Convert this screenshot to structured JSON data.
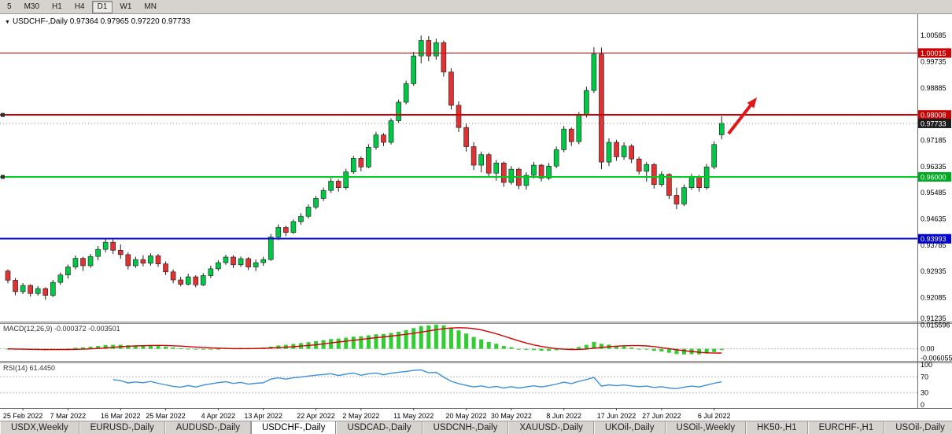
{
  "colors": {
    "bull": "#00C846",
    "bear": "#E03232",
    "wick": "#1a1a1a",
    "macd_hist": "#32CD32",
    "macd_signal": "#D40000",
    "rsi": "#3E8FDE",
    "axis": "#6e6e6e"
  },
  "toolbar": {
    "buttons": [
      "5",
      "M30",
      "H1",
      "H4",
      "D1",
      "W1",
      "MN"
    ],
    "active": "D1"
  },
  "chart_title": {
    "symbol": "USDCHF-,Daily",
    "ohlc": "0.97364 0.97965 0.97220 0.97733"
  },
  "indicators": {
    "macd": {
      "label": "MACD(12,26,9)",
      "values": "-0.000372 -0.003501",
      "scale": [
        {
          "text": "0.015596",
          "v": 0.015596
        },
        {
          "text": "0.00",
          "v": 0
        },
        {
          "text": "-0.006055",
          "v": -0.006055
        }
      ]
    },
    "rsi": {
      "label": "RSI(14)",
      "value": "61.4450",
      "scale": [
        {
          "text": "100",
          "v": 100
        },
        {
          "text": "70",
          "v": 70
        },
        {
          "text": "30",
          "v": 30
        },
        {
          "text": "0",
          "v": 0
        }
      ]
    }
  },
  "price_axis": {
    "labels": [
      {
        "text": "1.00585",
        "price": 1.00585
      },
      {
        "text": "0.99735",
        "price": 0.99735
      },
      {
        "text": "0.98885",
        "price": 0.98885
      },
      {
        "text": "0.97185",
        "price": 0.97185
      },
      {
        "text": "0.96335",
        "price": 0.96335
      },
      {
        "text": "0.95485",
        "price": 0.95485
      },
      {
        "text": "0.94635",
        "price": 0.94635
      },
      {
        "text": "0.93785",
        "price": 0.93785
      },
      {
        "text": "0.92935",
        "price": 0.92935
      },
      {
        "text": "0.92085",
        "price": 0.92085
      },
      {
        "text": "0.91235",
        "price": 0.91235
      }
    ],
    "badges": [
      {
        "text": "1.00015",
        "price": 1.00015,
        "bg": "#CC0000",
        "fg": "#ffffff"
      },
      {
        "text": "0.98008",
        "price": 0.98008,
        "bg": "#CC0000",
        "fg": "#ffffff"
      },
      {
        "text": "0.97733",
        "price": 0.97733,
        "bg": "#1c1c1c",
        "fg": "#ffffff"
      },
      {
        "text": "0.96000",
        "price": 0.96,
        "bg": "#00AA22",
        "fg": "#ffffff"
      },
      {
        "text": "0.93993",
        "price": 0.93993,
        "bg": "#0000CC",
        "fg": "#ffffff"
      }
    ]
  },
  "hlines": [
    {
      "price": 1.00015,
      "color": "#CC0000",
      "width": 1
    },
    {
      "price": 0.98008,
      "color": "#CC0000",
      "width": 2,
      "handle": true
    },
    {
      "price": 0.96,
      "color": "#00CC22",
      "width": 2,
      "handle": true
    },
    {
      "price": 0.93993,
      "color": "#0000CC",
      "width": 2
    },
    {
      "price": 0.97733,
      "color": "#8a8a8a",
      "width": 1,
      "dash": "1 3"
    }
  ],
  "arrow": {
    "color": "#E01818"
  },
  "tabs": {
    "items": [
      "USDX,Weekly",
      "EURUSD-,Daily",
      "AUDUSD-,Daily",
      "USDCHF-,Daily",
      "USDCAD-,Daily",
      "USDCNH-,Daily",
      "XAUUSD-,Daily",
      "UKOil-,Daily",
      "USOil-,Weekly",
      "HK50-,H1",
      "EURCHF-,H1",
      "USOil-,Daily"
    ],
    "active": "USDCHF-,Daily"
  },
  "chart_data": {
    "type": "candlestick",
    "symbol": "USDCHF",
    "timeframe": "Daily",
    "current_bar": {
      "open": 0.97364,
      "high": 0.97965,
      "low": 0.9722,
      "close": 0.97733
    },
    "time_ticks": [
      {
        "idx": 2,
        "label": "25 Feb 2022"
      },
      {
        "idx": 8,
        "label": "7 Mar 2022"
      },
      {
        "idx": 15,
        "label": "16 Mar 2022"
      },
      {
        "idx": 21,
        "label": "25 Mar 2022"
      },
      {
        "idx": 28,
        "label": "4 Apr 2022"
      },
      {
        "idx": 34,
        "label": "13 Apr 2022"
      },
      {
        "idx": 41,
        "label": "22 Apr 2022"
      },
      {
        "idx": 47,
        "label": "2 May 2022"
      },
      {
        "idx": 54,
        "label": "11 May 2022"
      },
      {
        "idx": 61,
        "label": "20 May 2022"
      },
      {
        "idx": 67,
        "label": "30 May 2022"
      },
      {
        "idx": 74,
        "label": "8 Jun 2022"
      },
      {
        "idx": 81,
        "label": "17 Jun 2022"
      },
      {
        "idx": 87,
        "label": "27 Jun 2022"
      },
      {
        "idx": 94,
        "label": "6 Jul 2022"
      }
    ],
    "candles": [
      [
        0.9295,
        0.93,
        0.9255,
        0.9265
      ],
      [
        0.9265,
        0.9272,
        0.9216,
        0.9228
      ],
      [
        0.9228,
        0.9256,
        0.922,
        0.9248
      ],
      [
        0.9248,
        0.9252,
        0.9212,
        0.9222
      ],
      [
        0.9222,
        0.9246,
        0.9215,
        0.9238
      ],
      [
        0.9238,
        0.9242,
        0.9202,
        0.9216
      ],
      [
        0.9216,
        0.9266,
        0.921,
        0.9258
      ],
      [
        0.9258,
        0.929,
        0.925,
        0.9282
      ],
      [
        0.9282,
        0.9316,
        0.927,
        0.9308
      ],
      [
        0.9308,
        0.9345,
        0.93,
        0.9336
      ],
      [
        0.9336,
        0.9341,
        0.9295,
        0.9312
      ],
      [
        0.9312,
        0.935,
        0.9305,
        0.9342
      ],
      [
        0.9342,
        0.9376,
        0.933,
        0.9365
      ],
      [
        0.9365,
        0.9399,
        0.9355,
        0.9388
      ],
      [
        0.9388,
        0.9397,
        0.935,
        0.9362
      ],
      [
        0.9362,
        0.9381,
        0.9335,
        0.9348
      ],
      [
        0.9348,
        0.9355,
        0.93,
        0.9312
      ],
      [
        0.9312,
        0.9341,
        0.9305,
        0.9332
      ],
      [
        0.9332,
        0.9346,
        0.931,
        0.932
      ],
      [
        0.932,
        0.9352,
        0.9312,
        0.9344
      ],
      [
        0.9344,
        0.935,
        0.9308,
        0.9318
      ],
      [
        0.9318,
        0.9326,
        0.9282,
        0.9292
      ],
      [
        0.9292,
        0.93,
        0.9255,
        0.9266
      ],
      [
        0.9266,
        0.9276,
        0.9245,
        0.9252
      ],
      [
        0.9252,
        0.9286,
        0.9248,
        0.9276
      ],
      [
        0.9276,
        0.9281,
        0.9242,
        0.925
      ],
      [
        0.925,
        0.9288,
        0.9246,
        0.928
      ],
      [
        0.928,
        0.9312,
        0.9272,
        0.9302
      ],
      [
        0.9302,
        0.933,
        0.9295,
        0.9322
      ],
      [
        0.9322,
        0.9348,
        0.9315,
        0.934
      ],
      [
        0.934,
        0.9346,
        0.9305,
        0.9315
      ],
      [
        0.9315,
        0.9342,
        0.9308,
        0.9335
      ],
      [
        0.9335,
        0.934,
        0.9298,
        0.9308
      ],
      [
        0.9308,
        0.9332,
        0.9295,
        0.9322
      ],
      [
        0.9322,
        0.9341,
        0.9312,
        0.9332
      ],
      [
        0.9332,
        0.9415,
        0.9328,
        0.9405
      ],
      [
        0.9405,
        0.9446,
        0.9395,
        0.9436
      ],
      [
        0.9436,
        0.9442,
        0.9408,
        0.942
      ],
      [
        0.942,
        0.9462,
        0.9415,
        0.9455
      ],
      [
        0.9455,
        0.9482,
        0.9445,
        0.9472
      ],
      [
        0.9472,
        0.951,
        0.9465,
        0.9502
      ],
      [
        0.9502,
        0.9538,
        0.9495,
        0.953
      ],
      [
        0.953,
        0.9565,
        0.9522,
        0.9556
      ],
      [
        0.9556,
        0.9596,
        0.9548,
        0.9586
      ],
      [
        0.9586,
        0.9592,
        0.9552,
        0.9565
      ],
      [
        0.9565,
        0.9626,
        0.9558,
        0.9616
      ],
      [
        0.9616,
        0.9668,
        0.961,
        0.966
      ],
      [
        0.966,
        0.9666,
        0.9618,
        0.9632
      ],
      [
        0.9632,
        0.9706,
        0.9628,
        0.9696
      ],
      [
        0.9696,
        0.9746,
        0.9688,
        0.9736
      ],
      [
        0.9736,
        0.9742,
        0.97,
        0.9712
      ],
      [
        0.9712,
        0.979,
        0.9705,
        0.9782
      ],
      [
        0.9782,
        0.985,
        0.9775,
        0.9842
      ],
      [
        0.9842,
        0.9912,
        0.9835,
        0.9902
      ],
      [
        0.9902,
        1.0005,
        0.9895,
        0.9992
      ],
      [
        0.9992,
        1.0058,
        0.9968,
        1.0042
      ],
      [
        1.0042,
        1.0056,
        0.9975,
        0.9992
      ],
      [
        0.9992,
        1.0048,
        0.998,
        1.0035
      ],
      [
        1.0035,
        1.0042,
        0.9925,
        0.994
      ],
      [
        0.994,
        0.9952,
        0.9818,
        0.9832
      ],
      [
        0.9832,
        0.9845,
        0.9745,
        0.976
      ],
      [
        0.976,
        0.9775,
        0.9682,
        0.9698
      ],
      [
        0.9698,
        0.9712,
        0.9622,
        0.9638
      ],
      [
        0.9638,
        0.9682,
        0.9615,
        0.9672
      ],
      [
        0.9672,
        0.9678,
        0.9598,
        0.9612
      ],
      [
        0.9612,
        0.9655,
        0.9588,
        0.9645
      ],
      [
        0.9645,
        0.965,
        0.9568,
        0.9582
      ],
      [
        0.9582,
        0.9635,
        0.9575,
        0.9625
      ],
      [
        0.9625,
        0.963,
        0.956,
        0.9572
      ],
      [
        0.9572,
        0.9615,
        0.9558,
        0.9605
      ],
      [
        0.9605,
        0.9648,
        0.9595,
        0.9638
      ],
      [
        0.9638,
        0.9642,
        0.9585,
        0.9596
      ],
      [
        0.9596,
        0.9645,
        0.959,
        0.9635
      ],
      [
        0.9635,
        0.9698,
        0.9628,
        0.9688
      ],
      [
        0.9688,
        0.9765,
        0.968,
        0.9755
      ],
      [
        0.9755,
        0.976,
        0.97,
        0.9714
      ],
      [
        0.9714,
        0.981,
        0.9706,
        0.98
      ],
      [
        0.98,
        0.9892,
        0.9792,
        0.988
      ],
      [
        0.988,
        1.002,
        0.9872,
        0.9998
      ],
      [
        0.9998,
        1.0019,
        0.9625,
        0.9648
      ],
      [
        0.9648,
        0.9725,
        0.9635,
        0.9712
      ],
      [
        0.9712,
        0.972,
        0.9652,
        0.9665
      ],
      [
        0.9665,
        0.9712,
        0.9655,
        0.97
      ],
      [
        0.97,
        0.9706,
        0.9645,
        0.9658
      ],
      [
        0.9658,
        0.9665,
        0.9608,
        0.9618
      ],
      [
        0.9618,
        0.9648,
        0.9585,
        0.964
      ],
      [
        0.964,
        0.9645,
        0.9562,
        0.9575
      ],
      [
        0.9575,
        0.9618,
        0.9568,
        0.9608
      ],
      [
        0.9608,
        0.9612,
        0.9528,
        0.954
      ],
      [
        0.954,
        0.9565,
        0.9495,
        0.9512
      ],
      [
        0.9512,
        0.9575,
        0.9505,
        0.9565
      ],
      [
        0.9565,
        0.961,
        0.9558,
        0.96
      ],
      [
        0.96,
        0.9606,
        0.9552,
        0.9565
      ],
      [
        0.9565,
        0.9642,
        0.9558,
        0.9632
      ],
      [
        0.9632,
        0.9715,
        0.9625,
        0.9705
      ],
      [
        0.97364,
        0.97965,
        0.9722,
        0.97733
      ]
    ]
  }
}
